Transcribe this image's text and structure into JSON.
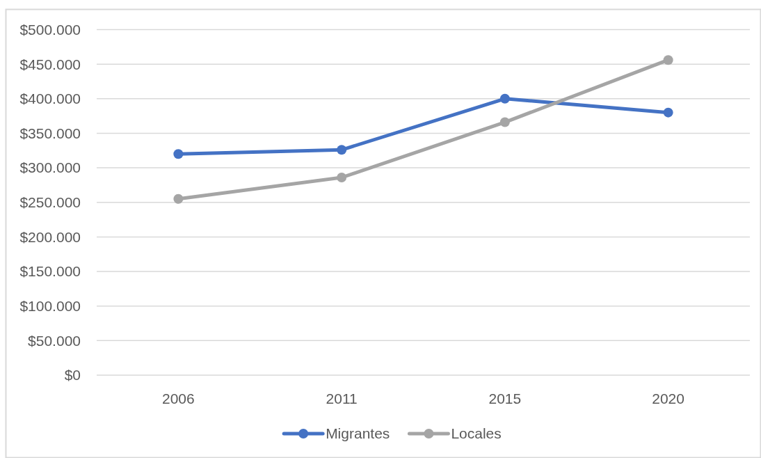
{
  "chart_data": {
    "type": "line",
    "categories": [
      "2006",
      "2011",
      "2015",
      "2020"
    ],
    "series": [
      {
        "name": "Migrantes",
        "color": "#4472c4",
        "values": [
          320000,
          326000,
          400000,
          380000
        ]
      },
      {
        "name": "Locales",
        "color": "#a5a5a5",
        "values": [
          255000,
          286000,
          366000,
          456000
        ]
      }
    ],
    "ylim": [
      0,
      500000
    ],
    "yticks": [
      {
        "value": 0,
        "label": "$0"
      },
      {
        "value": 50000,
        "label": "$50.000"
      },
      {
        "value": 100000,
        "label": "$100.000"
      },
      {
        "value": 150000,
        "label": "$150.000"
      },
      {
        "value": 200000,
        "label": "$200.000"
      },
      {
        "value": 250000,
        "label": "$250.000"
      },
      {
        "value": 300000,
        "label": "$300.000"
      },
      {
        "value": 350000,
        "label": "$350.000"
      },
      {
        "value": 400000,
        "label": "$400.000"
      },
      {
        "value": 450000,
        "label": "$450.000"
      },
      {
        "value": 500000,
        "label": "$500.000"
      }
    ],
    "grid": "y",
    "legend": "bottom",
    "marker": "circle"
  }
}
